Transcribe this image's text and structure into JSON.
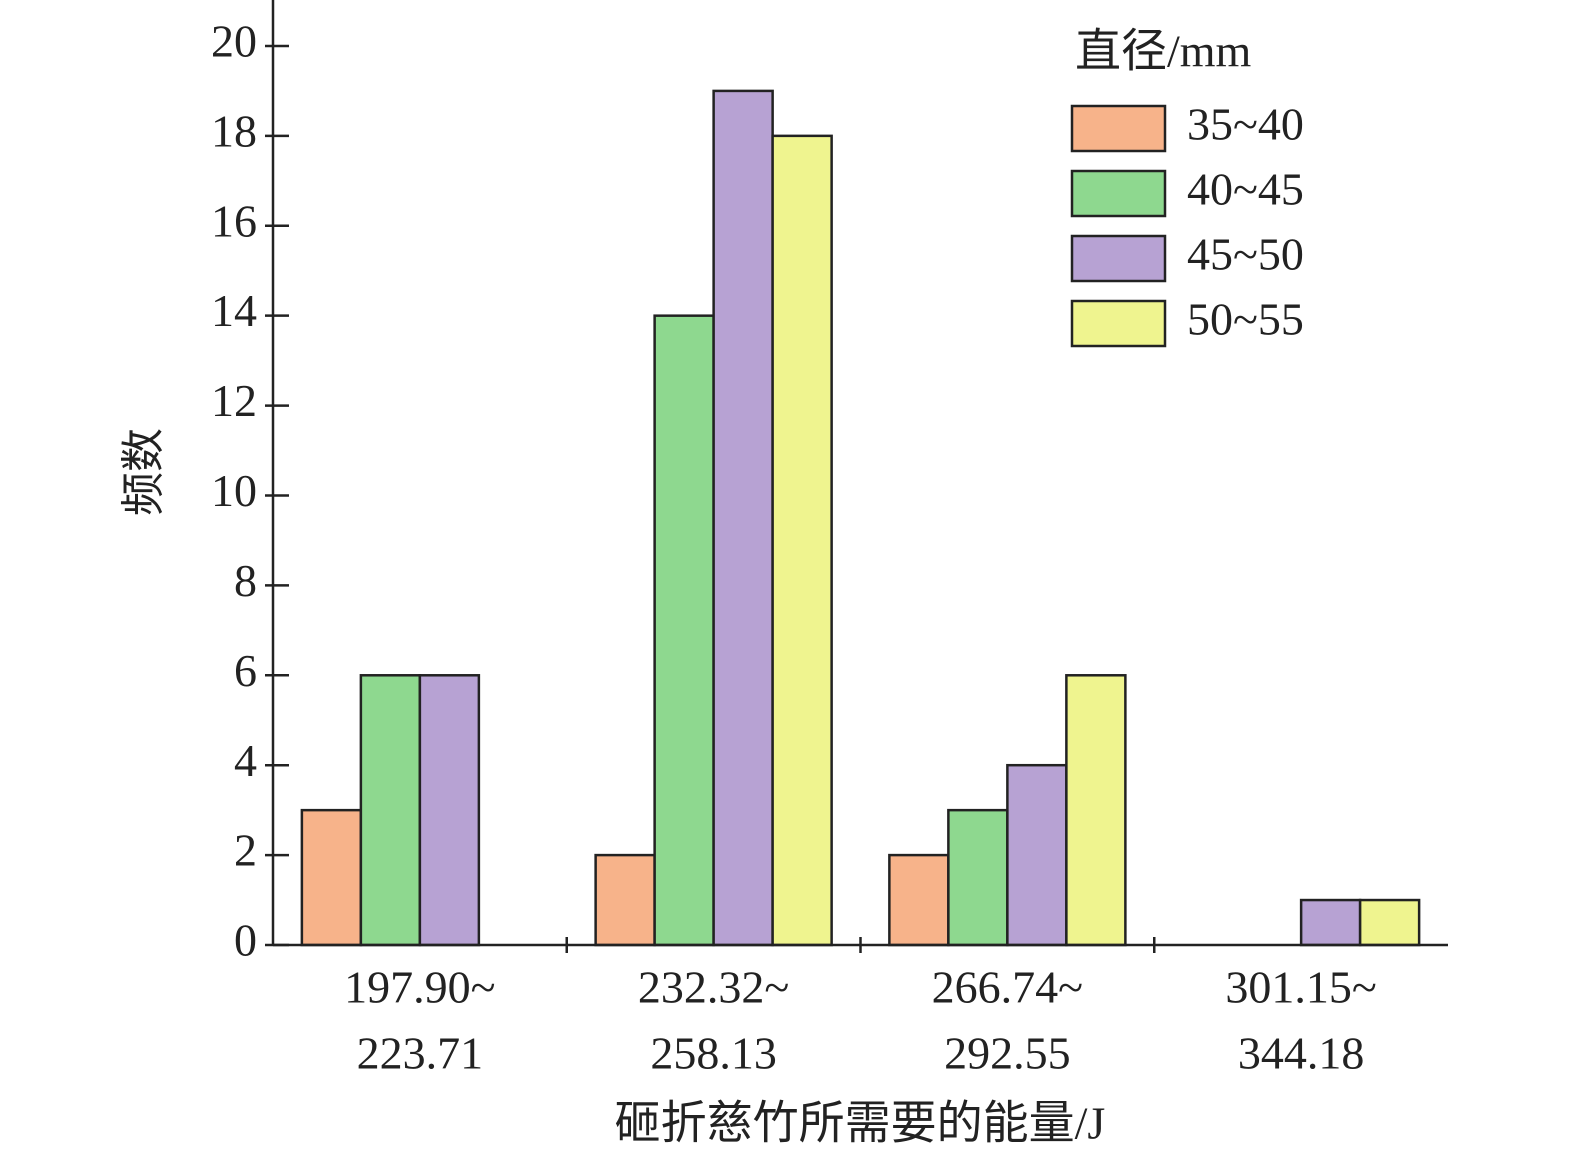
{
  "chart_data": {
    "type": "bar",
    "xlabel": "砸折慈竹所需要的能量/J",
    "ylabel": "频数",
    "categories": [
      [
        "197.90~",
        "223.71"
      ],
      [
        "232.32~",
        "258.13"
      ],
      [
        "266.74~",
        "292.55"
      ],
      [
        "301.15~",
        "344.18"
      ]
    ],
    "legend_title": "直径/mm",
    "legend": "upper right",
    "series": [
      {
        "name": "35~40",
        "color": "#f7b38a",
        "values": [
          3,
          2,
          2,
          0
        ]
      },
      {
        "name": "40~45",
        "color": "#8ed88f",
        "values": [
          6,
          14,
          3,
          0
        ]
      },
      {
        "name": "45~50",
        "color": "#b7a2d3",
        "values": [
          6,
          19,
          4,
          1
        ]
      },
      {
        "name": "50~55",
        "color": "#eff48f",
        "values": [
          0,
          18,
          6,
          1
        ]
      }
    ],
    "ylim": [
      0,
      21
    ],
    "yticks": [
      0,
      2,
      4,
      6,
      8,
      10,
      12,
      14,
      16,
      18,
      20
    ]
  }
}
